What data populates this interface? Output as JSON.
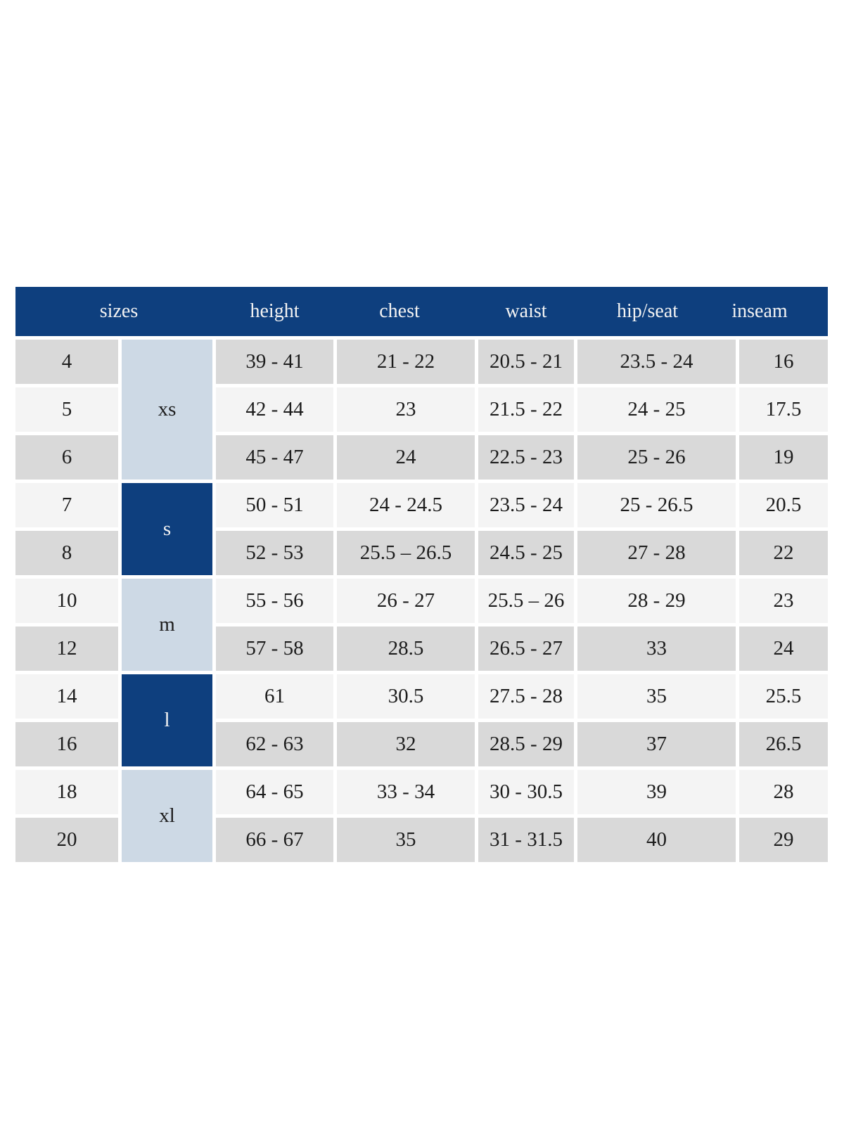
{
  "colors": {
    "header_navy": "#0e3f7e",
    "group_light_blue": "#cdd9e5",
    "row_gray": "#d9d9d9",
    "row_light": "#f4f4f4",
    "header_text": "#f3f3f3",
    "body_text": "#1c1c1c",
    "page_background": "#ffffff"
  },
  "chart_data": {
    "type": "table",
    "columns": [
      "sizes",
      "height",
      "chest",
      "waist",
      "hip/seat",
      "inseam"
    ],
    "size_groups": [
      {
        "label": "xs",
        "row_span": 3,
        "style": "light"
      },
      {
        "label": "s",
        "row_span": 2,
        "style": "dark"
      },
      {
        "label": "m",
        "row_span": 2,
        "style": "light"
      },
      {
        "label": "l",
        "row_span": 2,
        "style": "dark"
      },
      {
        "label": "xl",
        "row_span": 2,
        "style": "light"
      }
    ],
    "rows": [
      {
        "size": "4",
        "height": "39 - 41",
        "chest": "21 - 22",
        "waist": "20.5 - 21",
        "hip_seat": "23.5 - 24",
        "inseam": "16"
      },
      {
        "size": "5",
        "height": "42 - 44",
        "chest": "23",
        "waist": "21.5 - 22",
        "hip_seat": "24 - 25",
        "inseam": "17.5"
      },
      {
        "size": "6",
        "height": "45 - 47",
        "chest": "24",
        "waist": "22.5 - 23",
        "hip_seat": "25 - 26",
        "inseam": "19"
      },
      {
        "size": "7",
        "height": "50 - 51",
        "chest": "24 - 24.5",
        "waist": "23.5 - 24",
        "hip_seat": "25 - 26.5",
        "inseam": "20.5"
      },
      {
        "size": "8",
        "height": "52 - 53",
        "chest": "25.5 – 26.5",
        "waist": "24.5 - 25",
        "hip_seat": "27 - 28",
        "inseam": "22"
      },
      {
        "size": "10",
        "height": "55 - 56",
        "chest": "26 - 27",
        "waist": "25.5 – 26",
        "hip_seat": "28 - 29",
        "inseam": "23"
      },
      {
        "size": "12",
        "height": "57 - 58",
        "chest": "28.5",
        "waist": "26.5 - 27",
        "hip_seat": "33",
        "inseam": "24"
      },
      {
        "size": "14",
        "height": "61",
        "chest": "30.5",
        "waist": "27.5 - 28",
        "hip_seat": "35",
        "inseam": "25.5"
      },
      {
        "size": "16",
        "height": "62 - 63",
        "chest": "32",
        "waist": "28.5 - 29",
        "hip_seat": "37",
        "inseam": "26.5"
      },
      {
        "size": "18",
        "height": "64 - 65",
        "chest": "33 - 34",
        "waist": "30 - 30.5",
        "hip_seat": "39",
        "inseam": "28"
      },
      {
        "size": "20",
        "height": "66 - 67",
        "chest": "35",
        "waist": "31 - 31.5",
        "hip_seat": "40",
        "inseam": "29"
      }
    ]
  }
}
